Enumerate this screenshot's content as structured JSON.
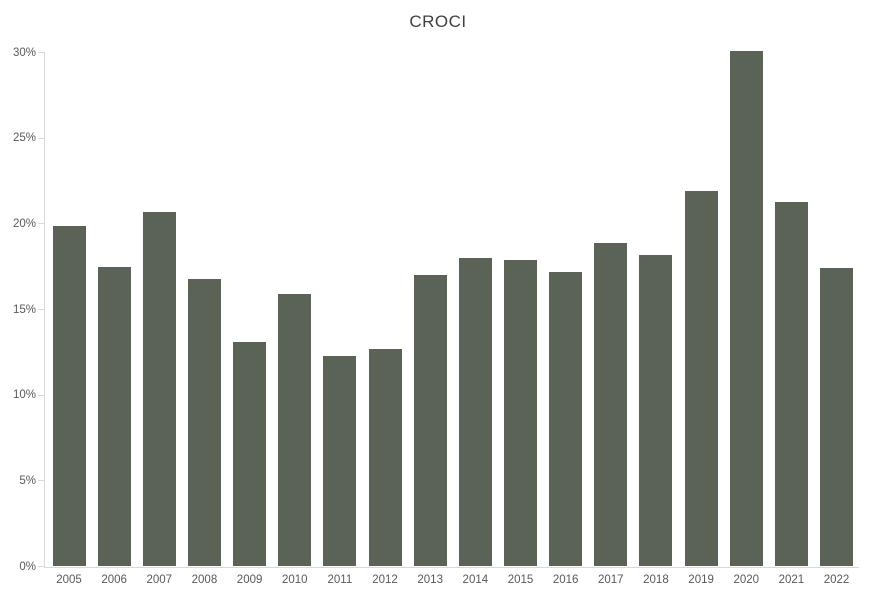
{
  "title": "CROCI",
  "chart_data": {
    "type": "bar",
    "title": "CROCI",
    "categories": [
      "2005",
      "2006",
      "2007",
      "2008",
      "2009",
      "2010",
      "2011",
      "2012",
      "2013",
      "2014",
      "2015",
      "2016",
      "2017",
      "2018",
      "2019",
      "2020",
      "2021",
      "2022"
    ],
    "values": [
      19.9,
      17.5,
      20.7,
      16.8,
      13.1,
      15.9,
      12.3,
      12.7,
      17.0,
      18.0,
      17.9,
      17.2,
      18.9,
      18.2,
      21.9,
      30.1,
      21.3,
      17.4
    ],
    "unit": "%",
    "xlabel": "",
    "ylabel": "",
    "ylim": [
      0,
      30
    ],
    "y_ticks": [
      {
        "value": 30,
        "label": "30%"
      },
      {
        "value": 25,
        "label": "25%"
      },
      {
        "value": 20,
        "label": "20%"
      },
      {
        "value": 15,
        "label": "15%"
      },
      {
        "value": 10,
        "label": "10%"
      },
      {
        "value": 5,
        "label": "5%"
      },
      {
        "value": 0,
        "label": "0%"
      }
    ],
    "grid": false,
    "legend_position": "none",
    "colors": {
      "bar": "#5a6356",
      "axis": "#d9d9d9",
      "tick_labels": "#595959",
      "title": "#404040",
      "background": "#ffffff"
    }
  }
}
